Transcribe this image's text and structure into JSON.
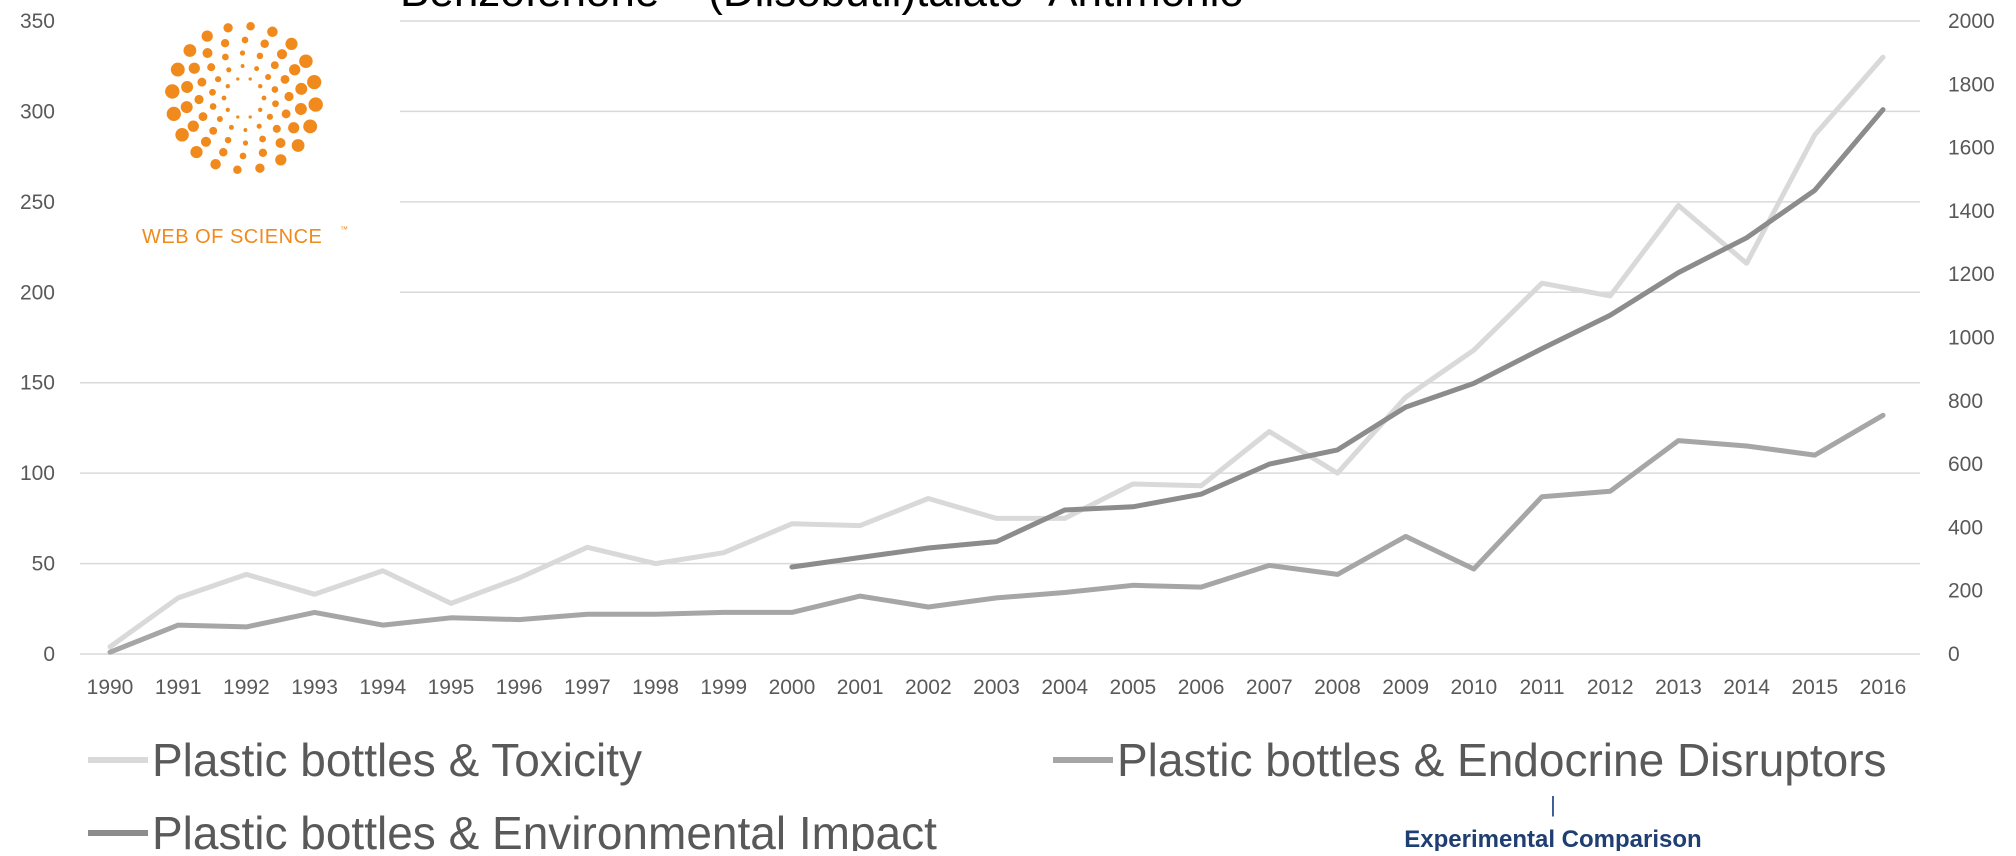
{
  "chart_data": {
    "type": "line",
    "title": "Benzofenone – (Diisobutil)talato- Antimonio",
    "categories": [
      "1990",
      "1991",
      "1992",
      "1993",
      "1994",
      "1995",
      "1996",
      "1997",
      "1998",
      "1999",
      "2000",
      "2001",
      "2002",
      "2003",
      "2004",
      "2005",
      "2006",
      "2007",
      "2008",
      "2009",
      "2010",
      "2011",
      "2012",
      "2013",
      "2014",
      "2015",
      "2016"
    ],
    "y_left": {
      "min": 0,
      "max": 350,
      "ticks": [
        "0",
        "50",
        "100",
        "150",
        "200",
        "250",
        "300",
        "350"
      ]
    },
    "y_right": {
      "min": 0,
      "max": 2000,
      "ticks": [
        "0",
        "200",
        "400",
        "600",
        "800",
        "1000",
        "1200",
        "1400",
        "1600",
        "1800",
        "2000"
      ]
    },
    "grid": true,
    "legend_position": "bottom",
    "series": [
      {
        "name": "Plastic bottles & Toxicity",
        "axis": "left",
        "color": "#d9d9d9",
        "values": [
          4,
          31,
          44,
          33,
          46,
          28,
          42,
          59,
          50,
          56,
          72,
          71,
          86,
          75,
          75,
          94,
          93,
          123,
          100,
          142,
          168,
          205,
          198,
          248,
          216,
          287,
          330
        ]
      },
      {
        "name": "Plastic bottles & Endocrine Disruptors",
        "axis": "left",
        "color": "#a6a6a6",
        "values": [
          1,
          16,
          15,
          23,
          16,
          20,
          19,
          22,
          22,
          23,
          23,
          32,
          26,
          31,
          34,
          38,
          37,
          49,
          44,
          65,
          47,
          87,
          90,
          118,
          115,
          110,
          132
        ]
      },
      {
        "name": "Plastic bottles & Environmental Impact",
        "axis": "right",
        "color": "#8c8c8c",
        "values": [
          null,
          null,
          null,
          null,
          null,
          null,
          null,
          null,
          null,
          null,
          275,
          305,
          335,
          355,
          455,
          465,
          505,
          600,
          645,
          780,
          855,
          965,
          1070,
          1205,
          1315,
          1465,
          1720
        ]
      }
    ]
  },
  "logo": {
    "brand_text": "WEB OF SCIENCE",
    "trademark": "™",
    "color": "#f08a1c"
  },
  "footer": {
    "divider_mark": "|",
    "caption": "Experimental Comparison"
  }
}
